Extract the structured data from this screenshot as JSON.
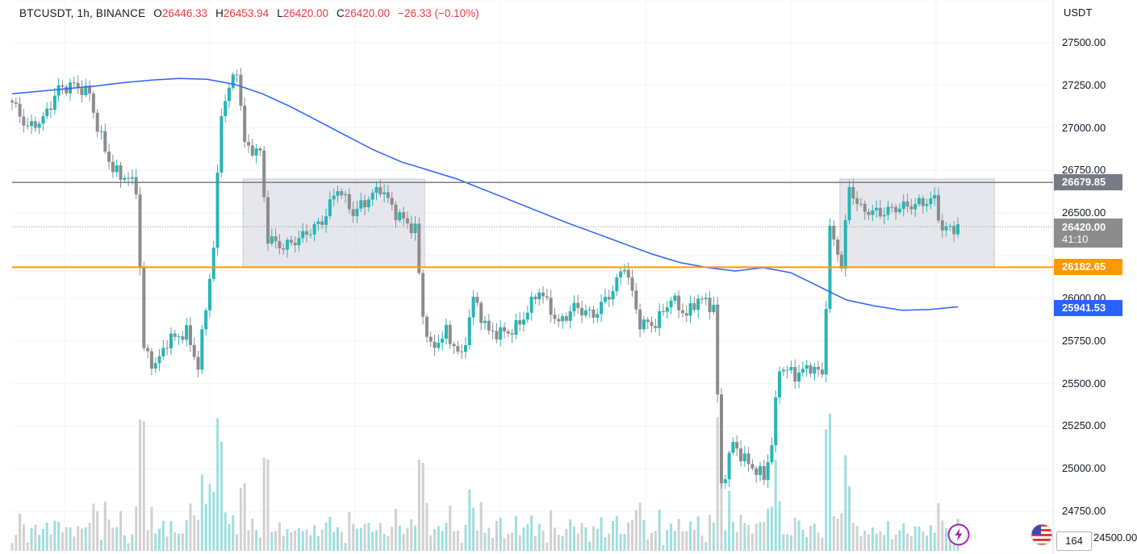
{
  "header": {
    "symbol": "BTCUSDT, 1h, BINANCE",
    "open_label": "O",
    "open_value": "26446.33",
    "high_label": "H",
    "high_value": "26453.94",
    "low_label": "L",
    "low_value": "26420.00",
    "close_label": "C",
    "close_value": "26420.00",
    "change": "−26.33 (−0.10%)"
  },
  "price_axis": {
    "unit": "USDT",
    "ticks": [
      "27500.00",
      "27250.00",
      "27000.00",
      "26750.00",
      "26500.00",
      "26000.00",
      "25750.00",
      "25500.00",
      "25250.00",
      "25000.00",
      "24750.00"
    ],
    "bottom_tick": "24500.00"
  },
  "price_labels": {
    "resistance": "26679.85",
    "current_price": "26420.00",
    "countdown": "41:10",
    "support": "26182.65",
    "moving_average": "25941.53"
  },
  "volume_label": "164",
  "colors": {
    "up": "#26b5b5",
    "down": "#8c8c8c",
    "ma": "#2962ff",
    "resistance": "#787b86",
    "support": "#ff9800",
    "range_box": "#d1d4dc"
  },
  "icons": {
    "alert": "lightning-icon",
    "flag": "us-flag-icon"
  },
  "chart_data": {
    "type": "candlestick",
    "symbol": "BTCUSDT",
    "interval": "1h",
    "exchange": "BINANCE",
    "ylim": [
      24500,
      27750
    ],
    "horizontal_lines": [
      {
        "value": 26679.85,
        "color": "#787b86"
      },
      {
        "value": 26182.65,
        "color": "#ff9800"
      }
    ],
    "range_boxes": [
      {
        "start_index": 60,
        "end_index": 106,
        "low": 26182.65,
        "high": 26700
      },
      {
        "start_index": 214,
        "end_index": 253,
        "low": 26182.65,
        "high": 26700
      }
    ],
    "moving_average": [
      27200,
      27215,
      27230,
      27245,
      27265,
      27280,
      27290,
      27285,
      27255,
      27200,
      27125,
      27040,
      26955,
      26870,
      26800,
      26750,
      26700,
      26635,
      26570,
      26505,
      26440,
      26380,
      26320,
      26260,
      26210,
      26180,
      26160,
      26180,
      26150,
      26070,
      25990,
      25955,
      25930,
      25935,
      25950
    ],
    "anchors": [
      [
        0,
        27150
      ],
      [
        4,
        27000
      ],
      [
        8,
        27050
      ],
      [
        12,
        27230
      ],
      [
        16,
        27250
      ],
      [
        20,
        27200
      ],
      [
        22,
        27000
      ],
      [
        26,
        26750
      ],
      [
        30,
        26700
      ],
      [
        32,
        26650
      ],
      [
        34,
        25700
      ],
      [
        37,
        25600
      ],
      [
        40,
        25750
      ],
      [
        45,
        25800
      ],
      [
        48,
        25600
      ],
      [
        52,
        26300
      ],
      [
        54,
        27100
      ],
      [
        58,
        27350
      ],
      [
        60,
        26900
      ],
      [
        64,
        26850
      ],
      [
        66,
        26350
      ],
      [
        70,
        26300
      ],
      [
        74,
        26350
      ],
      [
        80,
        26450
      ],
      [
        84,
        26650
      ],
      [
        88,
        26500
      ],
      [
        95,
        26650
      ],
      [
        99,
        26500
      ],
      [
        104,
        26400
      ],
      [
        106,
        25900
      ],
      [
        108,
        25700
      ],
      [
        112,
        25800
      ],
      [
        116,
        25650
      ],
      [
        119,
        26000
      ],
      [
        123,
        25800
      ],
      [
        128,
        25800
      ],
      [
        131,
        25850
      ],
      [
        136,
        26050
      ],
      [
        141,
        25850
      ],
      [
        145,
        25950
      ],
      [
        150,
        25900
      ],
      [
        155,
        26050
      ],
      [
        158,
        26200
      ],
      [
        162,
        25850
      ],
      [
        166,
        25850
      ],
      [
        170,
        26000
      ],
      [
        174,
        25900
      ],
      [
        177,
        26000
      ],
      [
        181,
        25950
      ],
      [
        183,
        24900
      ],
      [
        186,
        25150
      ],
      [
        189,
        25050
      ],
      [
        194,
        24950
      ],
      [
        196,
        25150
      ],
      [
        198,
        25600
      ],
      [
        202,
        25550
      ],
      [
        206,
        25600
      ],
      [
        209,
        25550
      ],
      [
        211,
        26400
      ],
      [
        214,
        26200
      ],
      [
        216,
        26650
      ],
      [
        219,
        26520
      ],
      [
        224,
        26500
      ],
      [
        228,
        26530
      ],
      [
        233,
        26550
      ],
      [
        238,
        26580
      ],
      [
        240,
        26400
      ],
      [
        244,
        26420
      ]
    ],
    "n_bars": 245
  }
}
